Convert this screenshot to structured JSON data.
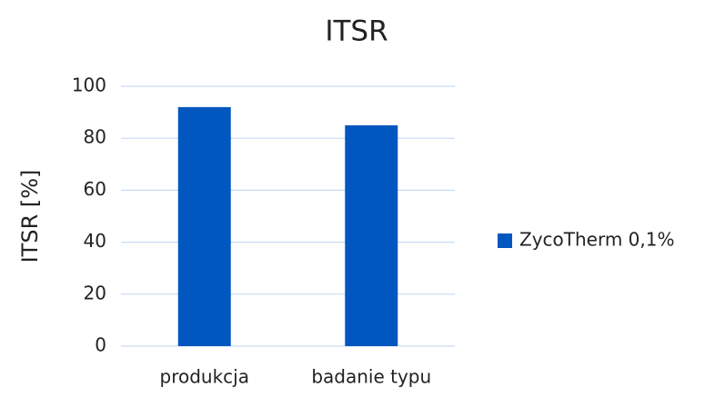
{
  "chart_data": {
    "type": "bar",
    "title": "ITSR",
    "y_label": "ITSR [%]",
    "categories": [
      "produkcja",
      "badanie typu"
    ],
    "series": [
      {
        "name": "ZycoTherm 0,1%",
        "color": "#0057c0",
        "values": [
          92,
          85
        ]
      }
    ],
    "ylim": [
      0,
      100
    ],
    "yticks": [
      0,
      20,
      40,
      60,
      80,
      100
    ],
    "grid": true,
    "legend": "right"
  }
}
